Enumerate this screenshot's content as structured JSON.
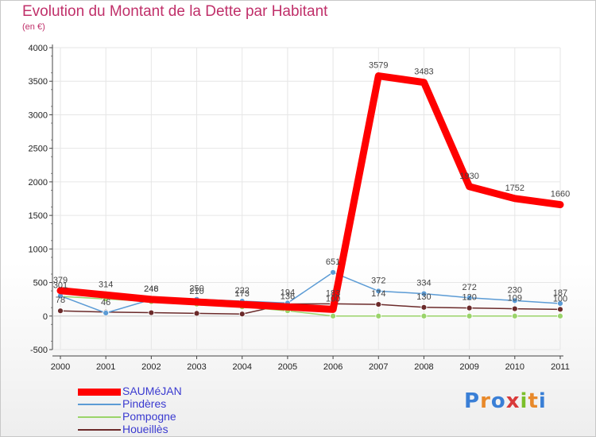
{
  "title": "Evolution du Montant de la Dette par Habitant",
  "subtitle": "(en €)",
  "logo": {
    "text": "Proxiti",
    "letters": [
      "P",
      "r",
      "o",
      "x",
      "i",
      "t",
      "i"
    ],
    "colors": [
      "#3a7fd6",
      "#e8892a",
      "#3a7fd6",
      "#d93a3a",
      "#7bbf2a",
      "#e8892a",
      "#3a7fd6"
    ]
  },
  "chart_data": {
    "type": "line",
    "title": "Evolution du Montant de la Dette par Habitant",
    "ylabel": "(en €)",
    "categories": [
      "2000",
      "2001",
      "2002",
      "2003",
      "2004",
      "2005",
      "2006",
      "2007",
      "2008",
      "2009",
      "2010",
      "2011"
    ],
    "ylim": [
      -500,
      4000
    ],
    "yticks": [
      -500,
      0,
      500,
      1000,
      1500,
      2000,
      2500,
      3000,
      3500,
      4000
    ],
    "series": [
      {
        "name": "SAUMéJAN",
        "color": "#ff0000",
        "width": 9,
        "marker": 0,
        "values": [
          379,
          314,
          248,
          210,
          173,
          136,
          100,
          3579,
          3483,
          1930,
          1752,
          1660
        ],
        "labels": [
          "379",
          "314",
          "248",
          "210",
          "173",
          "136",
          "100",
          "3579",
          "3483",
          "1930",
          "1752",
          "1660"
        ]
      },
      {
        "name": "Pindères",
        "color": "#5b9bd5",
        "width": 1.5,
        "marker": 3.5,
        "values": [
          301,
          46,
          246,
          250,
          222,
          194,
          651,
          372,
          334,
          272,
          230,
          187
        ],
        "labels": [
          "301",
          "46",
          "246",
          "250",
          "222",
          "194",
          "651",
          "372",
          "334",
          "272",
          "230",
          "187"
        ]
      },
      {
        "name": "Pompogne",
        "color": "#9ad46a",
        "width": 1.5,
        "marker": 3.5,
        "values": [
          293,
          255,
          215,
          177,
          138,
          78,
          0,
          0,
          0,
          0,
          0,
          0
        ],
        "labels": [
          "",
          "",
          "",
          "",
          "",
          "",
          "",
          "",
          "",
          "",
          "",
          ""
        ]
      },
      {
        "name": "Houeillès",
        "color": "#6b2a2a",
        "width": 1.5,
        "marker": 3.5,
        "values": [
          78,
          60,
          50,
          40,
          30,
          180,
          183,
          174,
          130,
          120,
          109,
          100
        ],
        "labels": [
          "78",
          "",
          "",
          "",
          "",
          "",
          "183",
          "174",
          "130",
          "120",
          "109",
          "100"
        ]
      }
    ]
  }
}
